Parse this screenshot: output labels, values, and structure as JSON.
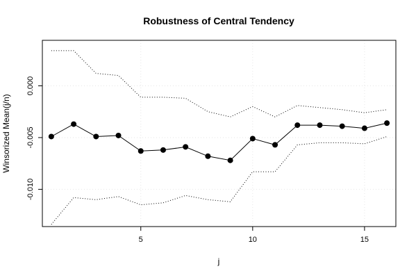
{
  "chart_data": {
    "type": "line",
    "title": "Robustness of Central Tendency",
    "xlabel": "j",
    "ylabel": "Winsorized Mean(j/n)",
    "xlim": [
      0.6,
      16.4
    ],
    "ylim": [
      -0.0136,
      0.0044
    ],
    "x_ticks": [
      5,
      10,
      15
    ],
    "y_ticks": [
      0.0,
      -0.005,
      -0.01
    ],
    "y_tick_labels": [
      "0.000",
      "-0.005",
      "-0.010"
    ],
    "grid": true,
    "series": [
      {
        "role": "mean",
        "style": "solid-with-points",
        "x": [
          1,
          2,
          3,
          4,
          5,
          6,
          7,
          8,
          9,
          10,
          11,
          12,
          13,
          14,
          15,
          16
        ],
        "values": [
          -0.0049,
          -0.0037,
          -0.0049,
          -0.0048,
          -0.0063,
          -0.0062,
          -0.0059,
          -0.0068,
          -0.0072,
          -0.0051,
          -0.0057,
          -0.0038,
          -0.0038,
          -0.0039,
          -0.0041,
          -0.0036
        ]
      },
      {
        "role": "upper-band",
        "style": "dotted",
        "x": [
          1,
          2,
          3,
          4,
          5,
          6,
          7,
          8,
          9,
          10,
          11,
          12,
          13,
          14,
          15,
          16
        ],
        "values": [
          0.0034,
          0.0034,
          0.0012,
          0.001,
          -0.0011,
          -0.0011,
          -0.0012,
          -0.0025,
          -0.003,
          -0.002,
          -0.003,
          -0.0019,
          -0.0021,
          -0.0023,
          -0.0026,
          -0.0023
        ]
      },
      {
        "role": "lower-band",
        "style": "dotted",
        "x": [
          1,
          2,
          3,
          4,
          5,
          6,
          7,
          8,
          9,
          10,
          11,
          12,
          13,
          14,
          15,
          16
        ],
        "values": [
          -0.0134,
          -0.0108,
          -0.011,
          -0.0107,
          -0.0115,
          -0.0113,
          -0.0106,
          -0.011,
          -0.0112,
          -0.0083,
          -0.0083,
          -0.0057,
          -0.0055,
          -0.0055,
          -0.0056,
          -0.0049
        ]
      }
    ]
  }
}
